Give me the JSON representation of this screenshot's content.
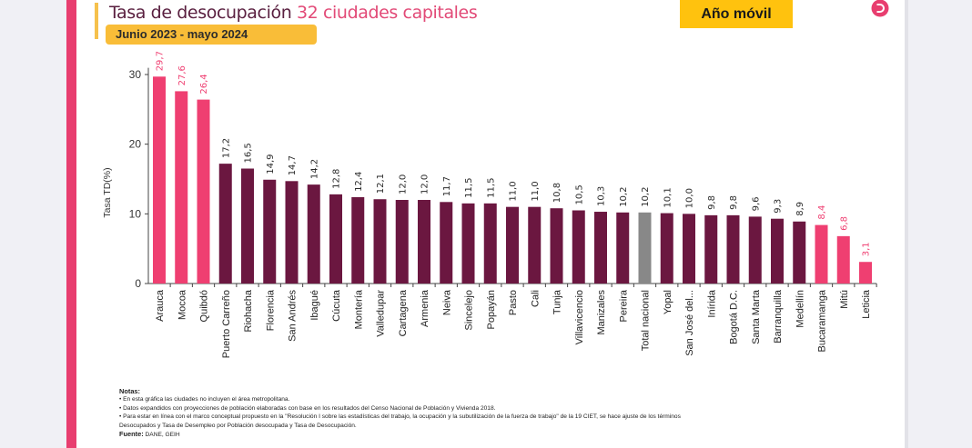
{
  "header": {
    "title_main": "Tasa de desocupación",
    "title_accent": "32 ciudades capitales",
    "subtitle": "Junio 2023 - mayo 2024",
    "badge": "Año móvil",
    "logo_icon": "dane-logo-icon"
  },
  "colors": {
    "highlight": "#ef3f71",
    "standard": "#6b1740",
    "national": "#888888",
    "brand_pink": "#e83e6f",
    "badge_yellow": "#ffc20e",
    "subtitle_yellow": "#f9bd38"
  },
  "chart_data": {
    "type": "bar",
    "title": "Tasa de desocupación 32 ciudades capitales",
    "subtitle": "Junio 2023 - mayo 2024",
    "xlabel": "",
    "ylabel": "Tasa TD(%)",
    "ylim": [
      0,
      32
    ],
    "yticks": [
      0,
      10,
      20,
      30
    ],
    "grid": false,
    "categories": [
      "Arauca",
      "Mocoa",
      "Quibdó",
      "Puerto Carreño",
      "Riohacha",
      "Florencia",
      "San Andrés",
      "Ibagué",
      "Cúcuta",
      "Montería",
      "Valledupar",
      "Cartagena",
      "Armenia",
      "Neiva",
      "Sincelejo",
      "Popayán",
      "Pasto",
      "Cali",
      "Tunja",
      "Villavicencio",
      "Manizales",
      "Pereira",
      "Total nacional",
      "Yopal",
      "San José del...",
      "Inírida",
      "Bogotá D.C.",
      "Santa Marta",
      "Barranquilla",
      "Medellín",
      "Bucaramanga",
      "Mitú",
      "Leticia"
    ],
    "values": [
      29.7,
      27.6,
      26.4,
      17.2,
      16.5,
      14.9,
      14.7,
      14.2,
      12.8,
      12.4,
      12.1,
      12.0,
      12.0,
      11.7,
      11.5,
      11.5,
      11.0,
      11.0,
      10.8,
      10.5,
      10.3,
      10.2,
      10.2,
      10.1,
      10.0,
      9.8,
      9.8,
      9.6,
      9.3,
      8.9,
      8.4,
      6.8,
      3.1
    ],
    "labels": [
      "29,7",
      "27,6",
      "26,4",
      "17,2",
      "16,5",
      "14,9",
      "14,7",
      "14,2",
      "12,8",
      "12,4",
      "12,1",
      "12,0",
      "12,0",
      "11,7",
      "11,5",
      "11,5",
      "11,0",
      "11,0",
      "10,8",
      "10,5",
      "10,3",
      "10,2",
      "10,2",
      "10,1",
      "10,0",
      "9,8",
      "9,8",
      "9,6",
      "9,3",
      "8,9",
      "8,4",
      "6,8",
      "3,1"
    ],
    "groups": [
      "high",
      "high",
      "high",
      "std",
      "std",
      "std",
      "std",
      "std",
      "std",
      "std",
      "std",
      "std",
      "std",
      "std",
      "std",
      "std",
      "std",
      "std",
      "std",
      "std",
      "std",
      "std",
      "national",
      "std",
      "std",
      "std",
      "std",
      "std",
      "std",
      "std",
      "low",
      "low",
      "low"
    ]
  },
  "notes": {
    "heading": "Notas:",
    "items": [
      "• En esta gráfica las ciudades no incluyen el área metropolitana.",
      "• Datos expandidos con proyecciones de población elaboradas con base en los resultados del Censo Nacional de Población y Vivienda 2018.",
      "• Para estar en línea con el marco conceptual propuesto en la \"Resolución I sobre las estadísticas del trabajo, la ocupación y la subutilización de la fuerza de trabajo\" de la 19 CIET, se hace ajuste de los términos",
      "Desocupados y Tasa de Desempleo por Población desocupada y Tasa de Desocupación."
    ],
    "source_label": "Fuente:",
    "source_text": "DANE, GEIH"
  }
}
